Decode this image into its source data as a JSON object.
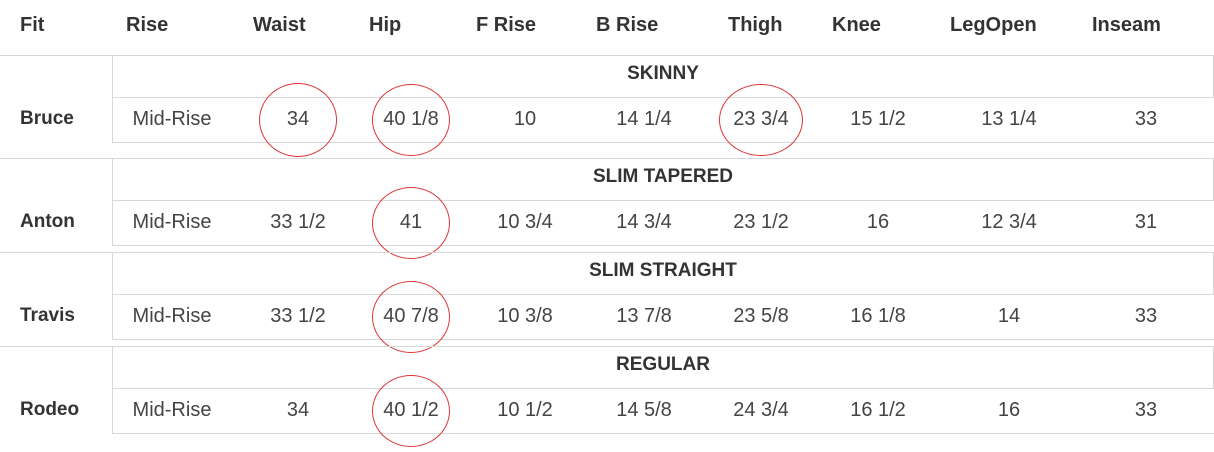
{
  "headers": [
    "Fit",
    "Rise",
    "Waist",
    "Hip",
    "F Rise",
    "B Rise",
    "Thigh",
    "Knee",
    "LegOpen",
    "Inseam"
  ],
  "groups": [
    {
      "title": "SKINNY",
      "row": {
        "fit": "Bruce",
        "rise": "Mid-Rise",
        "waist": "34",
        "hip": "40 1/8",
        "f_rise": "10",
        "b_rise": "14 1/4",
        "thigh": "23 3/4",
        "knee": "15 1/2",
        "leg_open": "13 1/4",
        "inseam": "33"
      },
      "circled": [
        "waist",
        "hip",
        "thigh"
      ]
    },
    {
      "title": "SLIM TAPERED",
      "row": {
        "fit": "Anton",
        "rise": "Mid-Rise",
        "waist": "33 1/2",
        "hip": "41",
        "f_rise": "10 3/4",
        "b_rise": "14 3/4",
        "thigh": "23 1/2",
        "knee": "16",
        "leg_open": "12 3/4",
        "inseam": "31"
      },
      "circled": [
        "hip"
      ]
    },
    {
      "title": "SLIM STRAIGHT",
      "row": {
        "fit": "Travis",
        "rise": "Mid-Rise",
        "waist": "33 1/2",
        "hip": "40 7/8",
        "f_rise": "10 3/8",
        "b_rise": "13 7/8",
        "thigh": "23 5/8",
        "knee": "16 1/8",
        "leg_open": "14",
        "inseam": "33"
      },
      "circled": [
        "hip"
      ]
    },
    {
      "title": "REGULAR",
      "row": {
        "fit": "Rodeo",
        "rise": "Mid-Rise",
        "waist": "34",
        "hip": "40 1/2",
        "f_rise": "10 1/2",
        "b_rise": "14 5/8",
        "thigh": "24 3/4",
        "knee": "16 1/2",
        "leg_open": "16",
        "inseam": "33"
      },
      "circled": [
        "hip"
      ]
    }
  ],
  "colors": {
    "circle": "#dd3333",
    "border": "#d8d8d8",
    "text": "#333333"
  }
}
